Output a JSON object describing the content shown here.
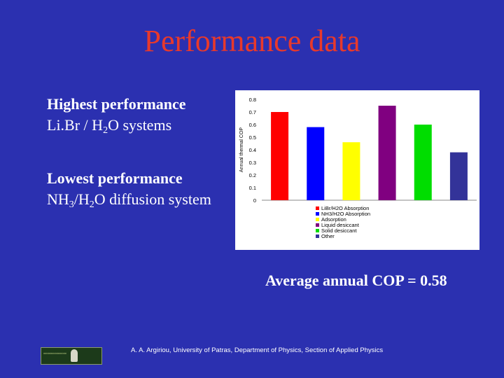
{
  "slide": {
    "title": "Performance data",
    "highest": {
      "heading": "Highest performance",
      "system_pre": "Li.Br / H",
      "system_sub": "2",
      "system_post": "O systems"
    },
    "lowest": {
      "heading": "Lowest performance",
      "system_a": "NH",
      "system_sub1": "3",
      "system_b": "/H",
      "system_sub2": "2",
      "system_c": "O diffusion system"
    },
    "average": "Average annual COP = 0.58",
    "footer": "A. A. Argiriou, University of Patras, Department of Physics, Section of Applied Physics"
  },
  "chart_data": {
    "type": "bar",
    "ylabel": "Annual thermal COP",
    "ylim": [
      0,
      0.8
    ],
    "yticks": [
      "0",
      "0.1",
      "0.2",
      "0.3",
      "0.4",
      "0.5",
      "0.6",
      "0.7",
      "0.8"
    ],
    "legend_position": "bottom",
    "series": [
      {
        "name": "LiBr/H2O Absorption",
        "value": 0.7,
        "color": "#ff0000"
      },
      {
        "name": "NH3/H2O Absorption",
        "value": 0.58,
        "color": "#0000ff"
      },
      {
        "name": "Adsorption",
        "value": 0.46,
        "color": "#ffff00"
      },
      {
        "name": "Liquid desiccant",
        "value": 0.75,
        "color": "#800080"
      },
      {
        "name": "Solid desiccant",
        "value": 0.6,
        "color": "#00dd00"
      },
      {
        "name": "Other",
        "value": 0.38,
        "color": "#333399"
      }
    ]
  }
}
